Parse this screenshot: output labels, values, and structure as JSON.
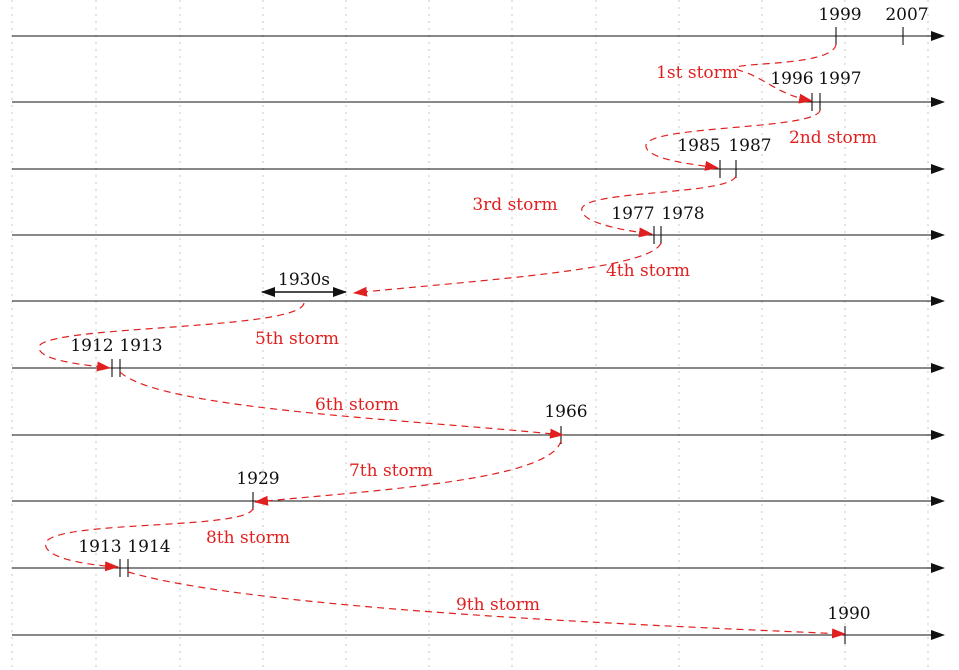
{
  "colors": {
    "axis": "#111111",
    "storm": "#e02020",
    "grid": "#c8c8c8"
  },
  "lines": [
    {
      "id": 1,
      "years": [
        "1999",
        "2007"
      ]
    },
    {
      "id": 2,
      "years": [
        "1996",
        "1997"
      ]
    },
    {
      "id": 3,
      "years": [
        "1985",
        "1987"
      ]
    },
    {
      "id": 4,
      "years": [
        "1977",
        "1978"
      ]
    },
    {
      "id": 5,
      "years": [
        "1930s"
      ]
    },
    {
      "id": 6,
      "years": [
        "1912",
        "1913"
      ]
    },
    {
      "id": 7,
      "years": [
        "1966"
      ]
    },
    {
      "id": 8,
      "years": [
        "1929"
      ]
    },
    {
      "id": 9,
      "years": [
        "1913",
        "1914"
      ]
    },
    {
      "id": 10,
      "years": [
        "1990"
      ]
    }
  ],
  "storms": [
    {
      "label": "1st storm"
    },
    {
      "label": "2nd storm"
    },
    {
      "label": "3rd storm"
    },
    {
      "label": "4th storm"
    },
    {
      "label": "5th storm"
    },
    {
      "label": "6th storm"
    },
    {
      "label": "7th storm"
    },
    {
      "label": "8th storm"
    },
    {
      "label": "9th storm"
    }
  ]
}
